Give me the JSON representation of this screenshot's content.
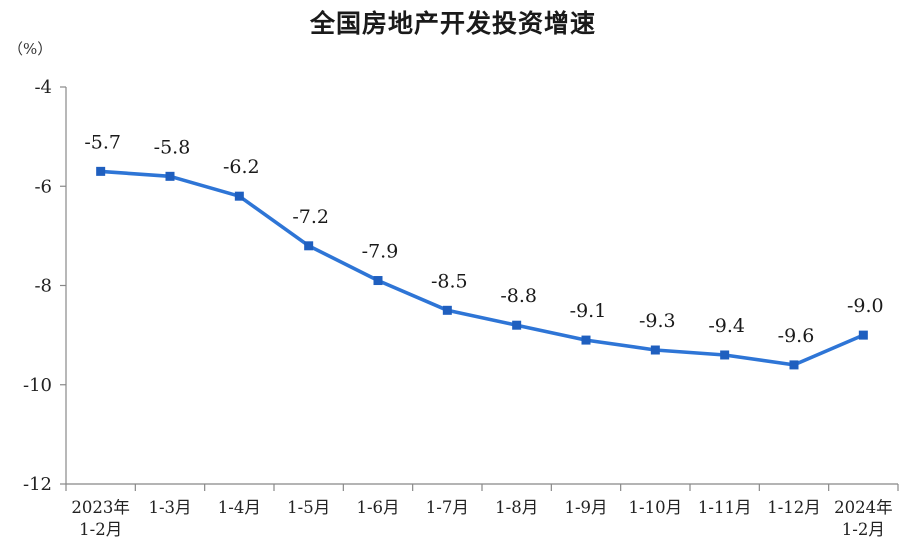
{
  "chart_data": {
    "type": "line",
    "title": "全国房地产开发投资增速",
    "unit": "（%）",
    "categories": [
      [
        "2023年",
        "1-2月"
      ],
      [
        "1-3月"
      ],
      [
        "1-4月"
      ],
      [
        "1-5月"
      ],
      [
        "1-6月"
      ],
      [
        "1-7月"
      ],
      [
        "1-8月"
      ],
      [
        "1-9月"
      ],
      [
        "1-10月"
      ],
      [
        "1-11月"
      ],
      [
        "1-12月"
      ],
      [
        "2024年",
        "1-2月"
      ]
    ],
    "values": [
      -5.7,
      -5.8,
      -6.2,
      -7.2,
      -7.9,
      -8.5,
      -8.8,
      -9.1,
      -9.3,
      -9.4,
      -9.6,
      -9.0
    ],
    "data_labels": [
      "-5.7",
      "-5.8",
      "-6.2",
      "-7.2",
      "-7.9",
      "-8.5",
      "-8.8",
      "-9.1",
      "-9.3",
      "-9.4",
      "-9.6",
      "-9.0"
    ],
    "y_ticks": [
      -4,
      -6,
      -8,
      -10,
      -12
    ],
    "ylim": [
      -12,
      -4
    ],
    "grid": false,
    "line_color": "#2e75d6",
    "marker_color": "#1f5fbf",
    "axis_color": "#888888"
  }
}
